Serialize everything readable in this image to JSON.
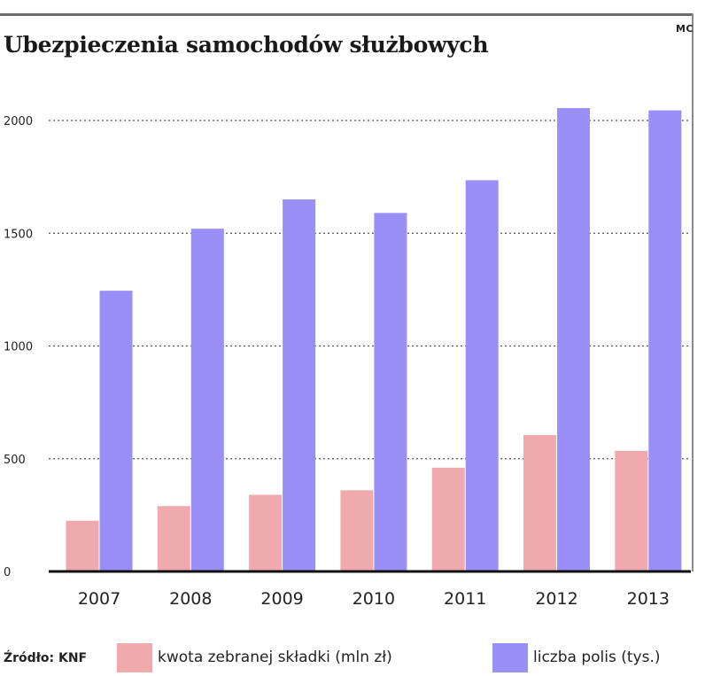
{
  "header": {
    "title": "Ubezpieczenia samochodów służbowych",
    "credit": "MC"
  },
  "footer": {
    "source": "Źródło: KNF"
  },
  "colors": {
    "series_premium": "#f0a9ac",
    "series_policies": "#9a8ff6",
    "grid": "#555555",
    "baseline": "#111111"
  },
  "chart_data": {
    "type": "bar",
    "title": "Ubezpieczenia samochodów służbowych",
    "xlabel": "",
    "ylabel": "",
    "categories": [
      "2007",
      "2008",
      "2009",
      "2010",
      "2011",
      "2012",
      "2013"
    ],
    "series": [
      {
        "name": "kwota zebranej składki (mln zł)",
        "values": [
          225,
          290,
          340,
          360,
          460,
          605,
          535
        ]
      },
      {
        "name": "liczba polis (tys.)",
        "values": [
          1245,
          1520,
          1650,
          1590,
          1735,
          2055,
          2045
        ]
      }
    ],
    "ylim": [
      0,
      2100
    ],
    "yticks": [
      "0",
      "500",
      "1000",
      "1500",
      "2000"
    ],
    "grid": true,
    "grid_style": "dotted",
    "legend_position": "bottom"
  }
}
